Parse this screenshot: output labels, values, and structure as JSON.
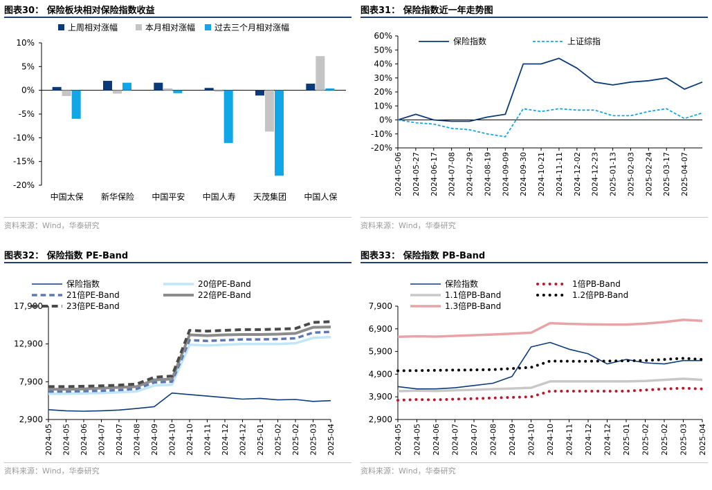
{
  "source_text": "资料来源：Wind，华泰研究",
  "charts": [
    {
      "panel_title": "图表30：  保险板块相对保险指数收益",
      "chart_data": {
        "type": "bar",
        "title": "保险板块相对保险指数收益",
        "categories": [
          "中国太保",
          "新华保险",
          "中国平安",
          "中国人寿",
          "天茂集团",
          "中国人保"
        ],
        "series": [
          {
            "name": "上周相对涨幅",
            "color": "#0a3b78",
            "values": [
              0.7,
              2.0,
              1.6,
              0.5,
              -1.1,
              1.4
            ]
          },
          {
            "name": "本月相对涨幅",
            "color": "#c4c4c4",
            "values": [
              -1.2,
              -0.7,
              0.4,
              -0.3,
              -8.7,
              7.2
            ]
          },
          {
            "name": "过去三个月相对涨幅",
            "color": "#11a6e6",
            "values": [
              -6.0,
              1.6,
              -0.6,
              -11.1,
              -18.0,
              0.4
            ]
          }
        ],
        "ylim": [
          -20,
          10
        ],
        "yticks": [
          10,
          5,
          0,
          -5,
          -10,
          -15,
          -20
        ],
        "ytick_labels": [
          "10%",
          "5%",
          "0%",
          "-5%",
          "-10%",
          "-15%",
          "-20%"
        ],
        "legend_position": "top"
      }
    },
    {
      "panel_title": "图表31：  保险指数近一年走势图",
      "chart_data": {
        "type": "line",
        "title": "保险指数近一年走势图",
        "x": [
          "2024-05-06",
          "2024-05-27",
          "2024-06-17",
          "2024-07-08",
          "2024-07-29",
          "2024-08-19",
          "2024-09-09",
          "2024-09-30",
          "2024-10-21",
          "2024-11-11",
          "2024-12-02",
          "2024-12-23",
          "2025-01-13",
          "2025-02-03",
          "2025-02-24",
          "2025-03-17",
          "2025-04-07",
          "2025-04-28"
        ],
        "xtick_labels": [
          "2024-05-06",
          "2024-05-27",
          "2024-06-17",
          "2024-07-08",
          "2024-07-29",
          "2024-08-19",
          "2024-09-09",
          "2024-09-30",
          "2024-10-21",
          "2024-11-11",
          "2024-12-02",
          "2024-12-23",
          "2025-01-13",
          "2025-02-03",
          "2025-02-24",
          "2025-03-17",
          "2025-04-07"
        ],
        "series": [
          {
            "name": "保险指数",
            "color": "#0a3b78",
            "style": "solid",
            "values": [
              0,
              4,
              0,
              -1,
              -1,
              2,
              4,
              40,
              40,
              44,
              37,
              27,
              25,
              27,
              28,
              30,
              22,
              27
            ]
          },
          {
            "name": "上证综指",
            "color": "#11a6e6",
            "style": "dashed",
            "values": [
              0,
              -2,
              -3,
              -6,
              -7,
              -10,
              -12,
              8,
              6,
              8,
              7,
              7,
              3,
              3,
              6,
              8,
              1,
              5
            ]
          }
        ],
        "ylim": [
          -20,
          60
        ],
        "yticks": [
          60,
          50,
          40,
          30,
          20,
          10,
          0,
          -10,
          -20
        ],
        "ytick_labels": [
          "60%",
          "50%",
          "40%",
          "30%",
          "20%",
          "10%",
          "0%",
          "-10%",
          "-20%"
        ],
        "legend_position": "top"
      }
    },
    {
      "panel_title": "图表32：  保险指数 PE-Band",
      "chart_data": {
        "type": "line",
        "title": "保险指数 PE-Band",
        "x": [
          "2024-05",
          "2024-05",
          "2024-06",
          "2024-07",
          "2024-07",
          "2024-08",
          "2024-09",
          "2024-10",
          "2024-10",
          "2024-11",
          "2024-12",
          "2024-12",
          "2025-01",
          "2025-02",
          "2025-02",
          "2025-03",
          "2025-04"
        ],
        "xtick_labels": [
          "2024-05",
          "2024-05",
          "2024-06",
          "2024-07",
          "2024-07",
          "2024-08",
          "2024-09",
          "2024-10",
          "2024-10",
          "2024-11",
          "2024-12",
          "2024-12",
          "2025-01",
          "2025-02",
          "2025-02",
          "2025-03",
          "2025-04"
        ],
        "series": [
          {
            "name": "保险指数",
            "color": "#0a3b78",
            "style": "solid",
            "width": 1.6,
            "values": [
              4200,
              4050,
              4000,
              4050,
              4150,
              4350,
              4600,
              6400,
              6200,
              6000,
              5800,
              5600,
              5700,
              5500,
              5550,
              5300,
              5400
            ]
          },
          {
            "name": "20倍PE-Band",
            "color": "#bfe6f9",
            "style": "solid",
            "width": 3.5,
            "values": [
              6300,
              6300,
              6350,
              6400,
              6500,
              6600,
              7400,
              7500,
              12800,
              12700,
              12800,
              12900,
              12900,
              12900,
              13000,
              13700,
              13800
            ]
          },
          {
            "name": "21倍PE-Band",
            "color": "#5b78b5",
            "style": "dashed",
            "width": 3.5,
            "values": [
              6600,
              6600,
              6650,
              6700,
              6800,
              6950,
              7800,
              7900,
              13400,
              13300,
              13400,
              13500,
              13500,
              13550,
              13650,
              14400,
              14500
            ]
          },
          {
            "name": "22倍PE-Band",
            "color": "#8c8c8c",
            "style": "solid",
            "width": 4,
            "values": [
              6900,
              6900,
              6950,
              7050,
              7150,
              7250,
              8150,
              8250,
              14100,
              14000,
              14100,
              14150,
              14150,
              14200,
              14300,
              15100,
              15150
            ]
          },
          {
            "name": "23倍PE-Band",
            "color": "#4a4a4a",
            "style": "dashed",
            "width": 4,
            "values": [
              7250,
              7250,
              7300,
              7350,
              7450,
              7600,
              8500,
              8650,
              14700,
              14600,
              14700,
              14800,
              14800,
              14850,
              14950,
              15750,
              15850
            ]
          }
        ],
        "ylim": [
          2900,
          17900
        ],
        "yticks": [
          17900,
          12900,
          7900,
          2900
        ],
        "ytick_labels": [
          "17,900",
          "12,900",
          "7,900",
          "2,900"
        ],
        "legend_position": "top"
      }
    },
    {
      "panel_title": "图表33：  保险指数 PB-Band",
      "chart_data": {
        "type": "line",
        "title": "保险指数 PB-Band",
        "x": [
          "2024-05",
          "2024-05",
          "2024-06",
          "2024-07",
          "2024-07",
          "2024-08",
          "2024-09",
          "2024-10",
          "2024-10",
          "2024-11",
          "2024-12",
          "2024-12",
          "2025-01",
          "2025-02",
          "2025-02",
          "2025-03",
          "2025-04"
        ],
        "xtick_labels": [
          "2024-05",
          "2024-05",
          "2024-06",
          "2024-07",
          "2024-07",
          "2024-08",
          "2024-09",
          "2024-10",
          "2024-10",
          "2024-11",
          "2024-12",
          "2024-12",
          "2025-01",
          "2025-02",
          "2025-02",
          "2025-03",
          "2025-04"
        ],
        "series": [
          {
            "name": "保险指数",
            "color": "#0a3b78",
            "style": "solid",
            "width": 1.6,
            "values": [
              4350,
              4250,
              4250,
              4300,
              4400,
              4500,
              4800,
              6100,
              6300,
              6000,
              5800,
              5350,
              5550,
              5400,
              5350,
              5500,
              5500
            ]
          },
          {
            "name": "1倍PB-Band",
            "color": "#c0152b",
            "style": "dotted",
            "width": 4,
            "values": [
              3750,
              3780,
              3770,
              3800,
              3820,
              3850,
              3880,
              3900,
              4150,
              4150,
              4150,
              4150,
              4150,
              4200,
              4250,
              4280,
              4250
            ]
          },
          {
            "name": "1.1倍PB-Band",
            "color": "#c8c8c8",
            "style": "solid",
            "width": 3.5,
            "values": [
              4150,
              4170,
              4160,
              4190,
              4210,
              4240,
              4270,
              4300,
              4580,
              4580,
              4580,
              4580,
              4580,
              4600,
              4650,
              4700,
              4650
            ]
          },
          {
            "name": "1.2倍PB-Band",
            "color": "#000000",
            "style": "dotted",
            "width": 4,
            "values": [
              5050,
              5060,
              5070,
              5080,
              5090,
              5100,
              5150,
              5200,
              5480,
              5470,
              5470,
              5480,
              5490,
              5500,
              5550,
              5600,
              5550
            ]
          },
          {
            "name": "1.3倍PB-Band",
            "color": "#e8a3a6",
            "style": "solid",
            "width": 3.5,
            "values": [
              6550,
              6570,
              6560,
              6590,
              6620,
              6650,
              6690,
              6730,
              7150,
              7120,
              7100,
              7090,
              7090,
              7130,
              7200,
              7300,
              7250
            ]
          }
        ],
        "ylim": [
          2900,
          7900
        ],
        "yticks": [
          7900,
          6900,
          5900,
          4900,
          3900,
          2900
        ],
        "ytick_labels": [
          "7,900",
          "6,900",
          "5,900",
          "4,900",
          "3,900",
          "2,900"
        ],
        "legend_position": "top"
      }
    }
  ]
}
